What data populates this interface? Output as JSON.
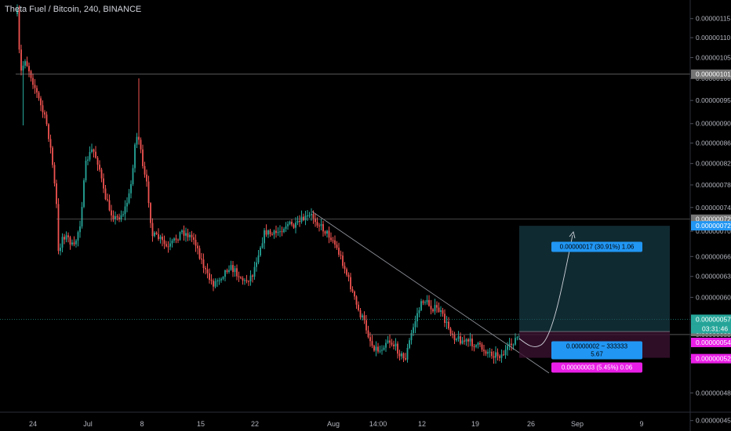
{
  "header": {
    "title": "Theta Fuel / Bitcoin, 240, BINANCE"
  },
  "colors": {
    "background": "#000000",
    "up": "#26a69a",
    "down": "#ef5350",
    "grid_line": "#6b6b6b",
    "target_box": "#1e4c5a",
    "stop_box": "#3a1230",
    "target_label_bg": "#2196f3",
    "stop_label_bg": "#e91ee6",
    "current_price_bg": "#26a69a",
    "axis_text": "#b2b5be"
  },
  "chart_data": {
    "type": "candlestick",
    "symbol": "Theta Fuel / Bitcoin",
    "interval": "240",
    "exchange": "BINANCE",
    "x_ticks": [
      "24",
      "Jul",
      "8",
      "15",
      "22",
      "Aug",
      "14:00",
      "12",
      "19",
      "26",
      "Sep",
      "9"
    ],
    "y_ticks": [
      "0.00000115",
      "0.00000110",
      "0.00000105",
      "0.00000100",
      "0.00000095",
      "0.00000090",
      "0.00000086",
      "0.00000082",
      "0.00000078",
      "0.00000074",
      "0.00000070",
      "0.00000066",
      "0.00000063",
      "0.00000060",
      "0.00000055",
      "0.00000052",
      "0.00000048",
      "0.00000045"
    ],
    "ylim": [
      4.42e-07,
      1.189e-06
    ],
    "log_scale": true,
    "price_line_badges": [
      {
        "label": "0.00000101",
        "value": 1.01e-06,
        "color": "#757575"
      },
      {
        "label": "0.00000072",
        "value": 7.2e-07,
        "color": "#757575"
      },
      {
        "label": "0.00000072",
        "value": 7.09e-07,
        "color": "#2196f3"
      },
      {
        "label": "0.00000057",
        "value": 5.7e-07,
        "color": "#26a69a"
      },
      {
        "label": "0.00000055",
        "value": 5.54e-07,
        "color": "#757575"
      },
      {
        "label": "0.00000054",
        "value": 5.4e-07,
        "color": "#e91ee6"
      },
      {
        "label": "0.00000052",
        "value": 5.2e-07,
        "color": "#e91ee6"
      }
    ],
    "countdown": "03:31:46",
    "trade_labels": {
      "target": "0.00000017 (30.91%) 1.06",
      "entry_line1": "0.00000002 ~ 333333",
      "entry_line2": "5.67",
      "stop": "0.00000003 (5.45%) 0.06"
    },
    "horizontal_levels": [
      1.01e-06,
      7.2e-07,
      5.5e-07
    ],
    "grid": false
  }
}
